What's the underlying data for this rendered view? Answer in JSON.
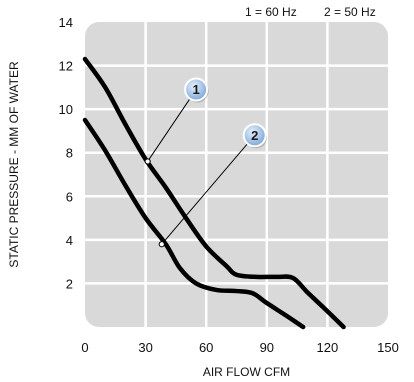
{
  "legend": [
    {
      "text": "1 = 60 Hz"
    },
    {
      "text": "2 = 50 Hz"
    }
  ],
  "chart_data": {
    "type": "line",
    "title": "",
    "xlabel": "AIR FLOW CFM",
    "ylabel": "STATIC PRESSURE - MM OF WATER",
    "xlim": [
      0,
      150
    ],
    "ylim": [
      0,
      14
    ],
    "x_ticks": [
      "0",
      "30",
      "60",
      "90",
      "120",
      "150"
    ],
    "y_ticks": [
      "2",
      "4",
      "6",
      "8",
      "10",
      "12",
      "14"
    ],
    "grid": true,
    "background_color": "#d9d9d9",
    "grid_color": "#ffffff",
    "line_color": "#000000",
    "callout_color": "#7fa8d8",
    "series": [
      {
        "label": "1",
        "points": [
          [
            0,
            12.3
          ],
          [
            10,
            11.0
          ],
          [
            20,
            9.3
          ],
          [
            30,
            7.7
          ],
          [
            40,
            6.4
          ],
          [
            50,
            5.0
          ],
          [
            60,
            3.7
          ],
          [
            70,
            2.8
          ],
          [
            75,
            2.4
          ],
          [
            85,
            2.3
          ],
          [
            95,
            2.3
          ],
          [
            103,
            2.25
          ],
          [
            110,
            1.6
          ],
          [
            118,
            0.9
          ],
          [
            128,
            0
          ]
        ],
        "callout": {
          "at": [
            31,
            7.6
          ],
          "label_pos": [
            55,
            10.9
          ]
        }
      },
      {
        "label": "2",
        "points": [
          [
            0,
            9.5
          ],
          [
            10,
            8.1
          ],
          [
            20,
            6.5
          ],
          [
            30,
            5.0
          ],
          [
            40,
            3.8
          ],
          [
            47,
            2.7
          ],
          [
            55,
            2.0
          ],
          [
            65,
            1.7
          ],
          [
            75,
            1.65
          ],
          [
            83,
            1.55
          ],
          [
            90,
            1.1
          ],
          [
            100,
            0.5
          ],
          [
            108,
            0
          ]
        ],
        "callout": {
          "at": [
            38,
            3.8
          ],
          "label_pos": [
            84,
            8.8
          ]
        }
      }
    ]
  }
}
